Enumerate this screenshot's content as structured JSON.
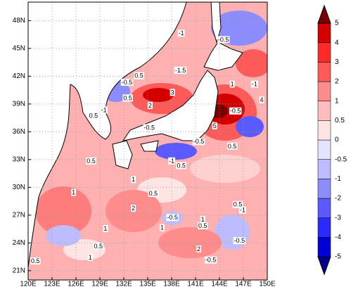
{
  "map": {
    "xlim": [
      120,
      150
    ],
    "ylim": [
      20,
      50
    ],
    "xticks": [
      {
        "value": 120,
        "label": "120E"
      },
      {
        "value": 123,
        "label": "123E"
      },
      {
        "value": 126,
        "label": "126E"
      },
      {
        "value": 129,
        "label": "129E"
      },
      {
        "value": 132,
        "label": "132E"
      },
      {
        "value": 135,
        "label": "135E"
      },
      {
        "value": 138,
        "label": "138E"
      },
      {
        "value": 141,
        "label": "141E"
      },
      {
        "value": 144,
        "label": "144E"
      },
      {
        "value": 147,
        "label": "147E"
      },
      {
        "value": 150,
        "label": "150E"
      }
    ],
    "yticks": [
      {
        "value": 21,
        "label": "21N"
      },
      {
        "value": 24,
        "label": "24N"
      },
      {
        "value": 27,
        "label": "27N"
      },
      {
        "value": 30,
        "label": "30N"
      },
      {
        "value": 33,
        "label": "33N"
      },
      {
        "value": 36,
        "label": "36N"
      },
      {
        "value": 39,
        "label": "39N"
      },
      {
        "value": 42,
        "label": "42N"
      },
      {
        "value": 45,
        "label": "45N"
      },
      {
        "value": 48,
        "label": "48N"
      }
    ],
    "grid": true
  },
  "colorbar": {
    "levels": [
      -5,
      -4,
      -3,
      -2,
      -1,
      -0.5,
      0,
      0.5,
      1,
      2,
      3,
      4,
      5
    ],
    "colors": [
      "#00008b",
      "#0000d4",
      "#2a2aff",
      "#5a5aff",
      "#8c8cff",
      "#bcbcff",
      "#e4e4ff",
      "#ffe4e4",
      "#ffbcbc",
      "#ff8c8c",
      "#ff5a5a",
      "#ff2a2a",
      "#d40000",
      "#7a0000"
    ]
  },
  "contour_labels": [
    {
      "text": "-1",
      "lon": 139.2,
      "lat": 46.6
    },
    {
      "text": "-0.5",
      "lon": 144.5,
      "lat": 45.9
    },
    {
      "text": "-1.5",
      "lon": 139.1,
      "lat": 42.6
    },
    {
      "text": "-0.5",
      "lon": 132.4,
      "lat": 41.3
    },
    {
      "text": "0.5",
      "lon": 133.9,
      "lat": 42.0
    },
    {
      "text": "1",
      "lon": 145.6,
      "lat": 41.1
    },
    {
      "text": "-1",
      "lon": 148.4,
      "lat": 41.1
    },
    {
      "text": "4",
      "lon": 149.3,
      "lat": 39.4
    },
    {
      "text": "0.5",
      "lon": 132.5,
      "lat": 39.6
    },
    {
      "text": "2",
      "lon": 135.3,
      "lat": 38.8
    },
    {
      "text": "3",
      "lon": 138.1,
      "lat": 40.2
    },
    {
      "text": "-0.5",
      "lon": 135.2,
      "lat": 36.4
    },
    {
      "text": "-1",
      "lon": 129.5,
      "lat": 38.3
    },
    {
      "text": "0.5",
      "lon": 128.2,
      "lat": 37.7
    },
    {
      "text": "5",
      "lon": 143.4,
      "lat": 36.6
    },
    {
      "text": "-0.5",
      "lon": 146.0,
      "lat": 38.2
    },
    {
      "text": "0.5",
      "lon": 145.6,
      "lat": 34.4
    },
    {
      "text": "-1",
      "lon": 138.0,
      "lat": 32.8
    },
    {
      "text": "0.5",
      "lon": 127.9,
      "lat": 32.8
    },
    {
      "text": "0.5",
      "lon": 139.2,
      "lat": 32.3
    },
    {
      "text": "-0.5",
      "lon": 141.4,
      "lat": 34.9
    },
    {
      "text": "1",
      "lon": 125.7,
      "lat": 29.4
    },
    {
      "text": "0.5",
      "lon": 135.7,
      "lat": 29.3
    },
    {
      "text": "1",
      "lon": 133.2,
      "lat": 30.8
    },
    {
      "text": "0.5",
      "lon": 146.3,
      "lat": 28.1
    },
    {
      "text": "2",
      "lon": 133.2,
      "lat": 27.7
    },
    {
      "text": "1",
      "lon": 141.9,
      "lat": 26.5
    },
    {
      "text": "-0.5",
      "lon": 138.1,
      "lat": 26.7
    },
    {
      "text": "1",
      "lon": 136.8,
      "lat": 25.6
    },
    {
      "text": "0.5",
      "lon": 141.9,
      "lat": 25.8
    },
    {
      "text": "-1",
      "lon": 146.9,
      "lat": 27.5
    },
    {
      "text": "1",
      "lon": 129.7,
      "lat": 25.5
    },
    {
      "text": "-0.5",
      "lon": 146.5,
      "lat": 24.2
    },
    {
      "text": "0.5",
      "lon": 128.8,
      "lat": 23.6
    },
    {
      "text": "2",
      "lon": 141.4,
      "lat": 23.3
    },
    {
      "text": "1",
      "lon": 127.8,
      "lat": 22.4
    },
    {
      "text": "0.5",
      "lon": 120.9,
      "lat": 22.0
    },
    {
      "text": "-0.5",
      "lon": 142.9,
      "lat": 22.1
    }
  ]
}
